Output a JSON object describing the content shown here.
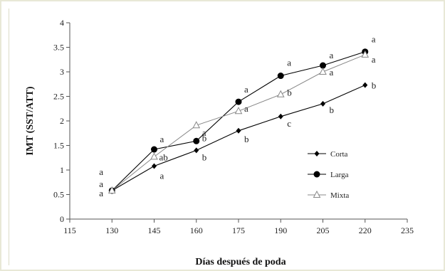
{
  "chart_data": {
    "type": "line",
    "xlabel": "Días después de poda",
    "ylabel": "IMT (SST/ATT)",
    "xlim": [
      115,
      235
    ],
    "ylim": [
      0,
      4
    ],
    "xticks": [
      115,
      130,
      145,
      160,
      175,
      190,
      205,
      220,
      235
    ],
    "yticks": [
      0,
      0.5,
      1,
      1.5,
      2,
      2.5,
      3,
      3.5,
      4
    ],
    "legend_position": "right",
    "x": [
      130,
      145,
      160,
      175,
      190,
      205,
      220
    ],
    "series": [
      {
        "name": "Corta",
        "marker": "diamond",
        "color": "#000000",
        "values": [
          0.58,
          1.08,
          1.4,
          1.8,
          2.09,
          2.35,
          2.73
        ],
        "letters": [
          "a",
          "a",
          "b",
          "b",
          "c",
          "b",
          "b"
        ]
      },
      {
        "name": "Larga",
        "marker": "circle",
        "color": "#000000",
        "values": [
          0.58,
          1.42,
          1.59,
          2.39,
          2.92,
          3.13,
          3.41
        ],
        "letters": [
          "a",
          "a",
          "b",
          "a",
          "a",
          "a",
          "a"
        ]
      },
      {
        "name": "Mixta",
        "marker": "triangle",
        "color": "#888888",
        "values": [
          0.58,
          1.27,
          1.91,
          2.2,
          2.54,
          3.0,
          3.35
        ],
        "letters": [
          "a",
          "ab",
          "a",
          "a",
          "b",
          "a",
          "a"
        ]
      }
    ]
  }
}
